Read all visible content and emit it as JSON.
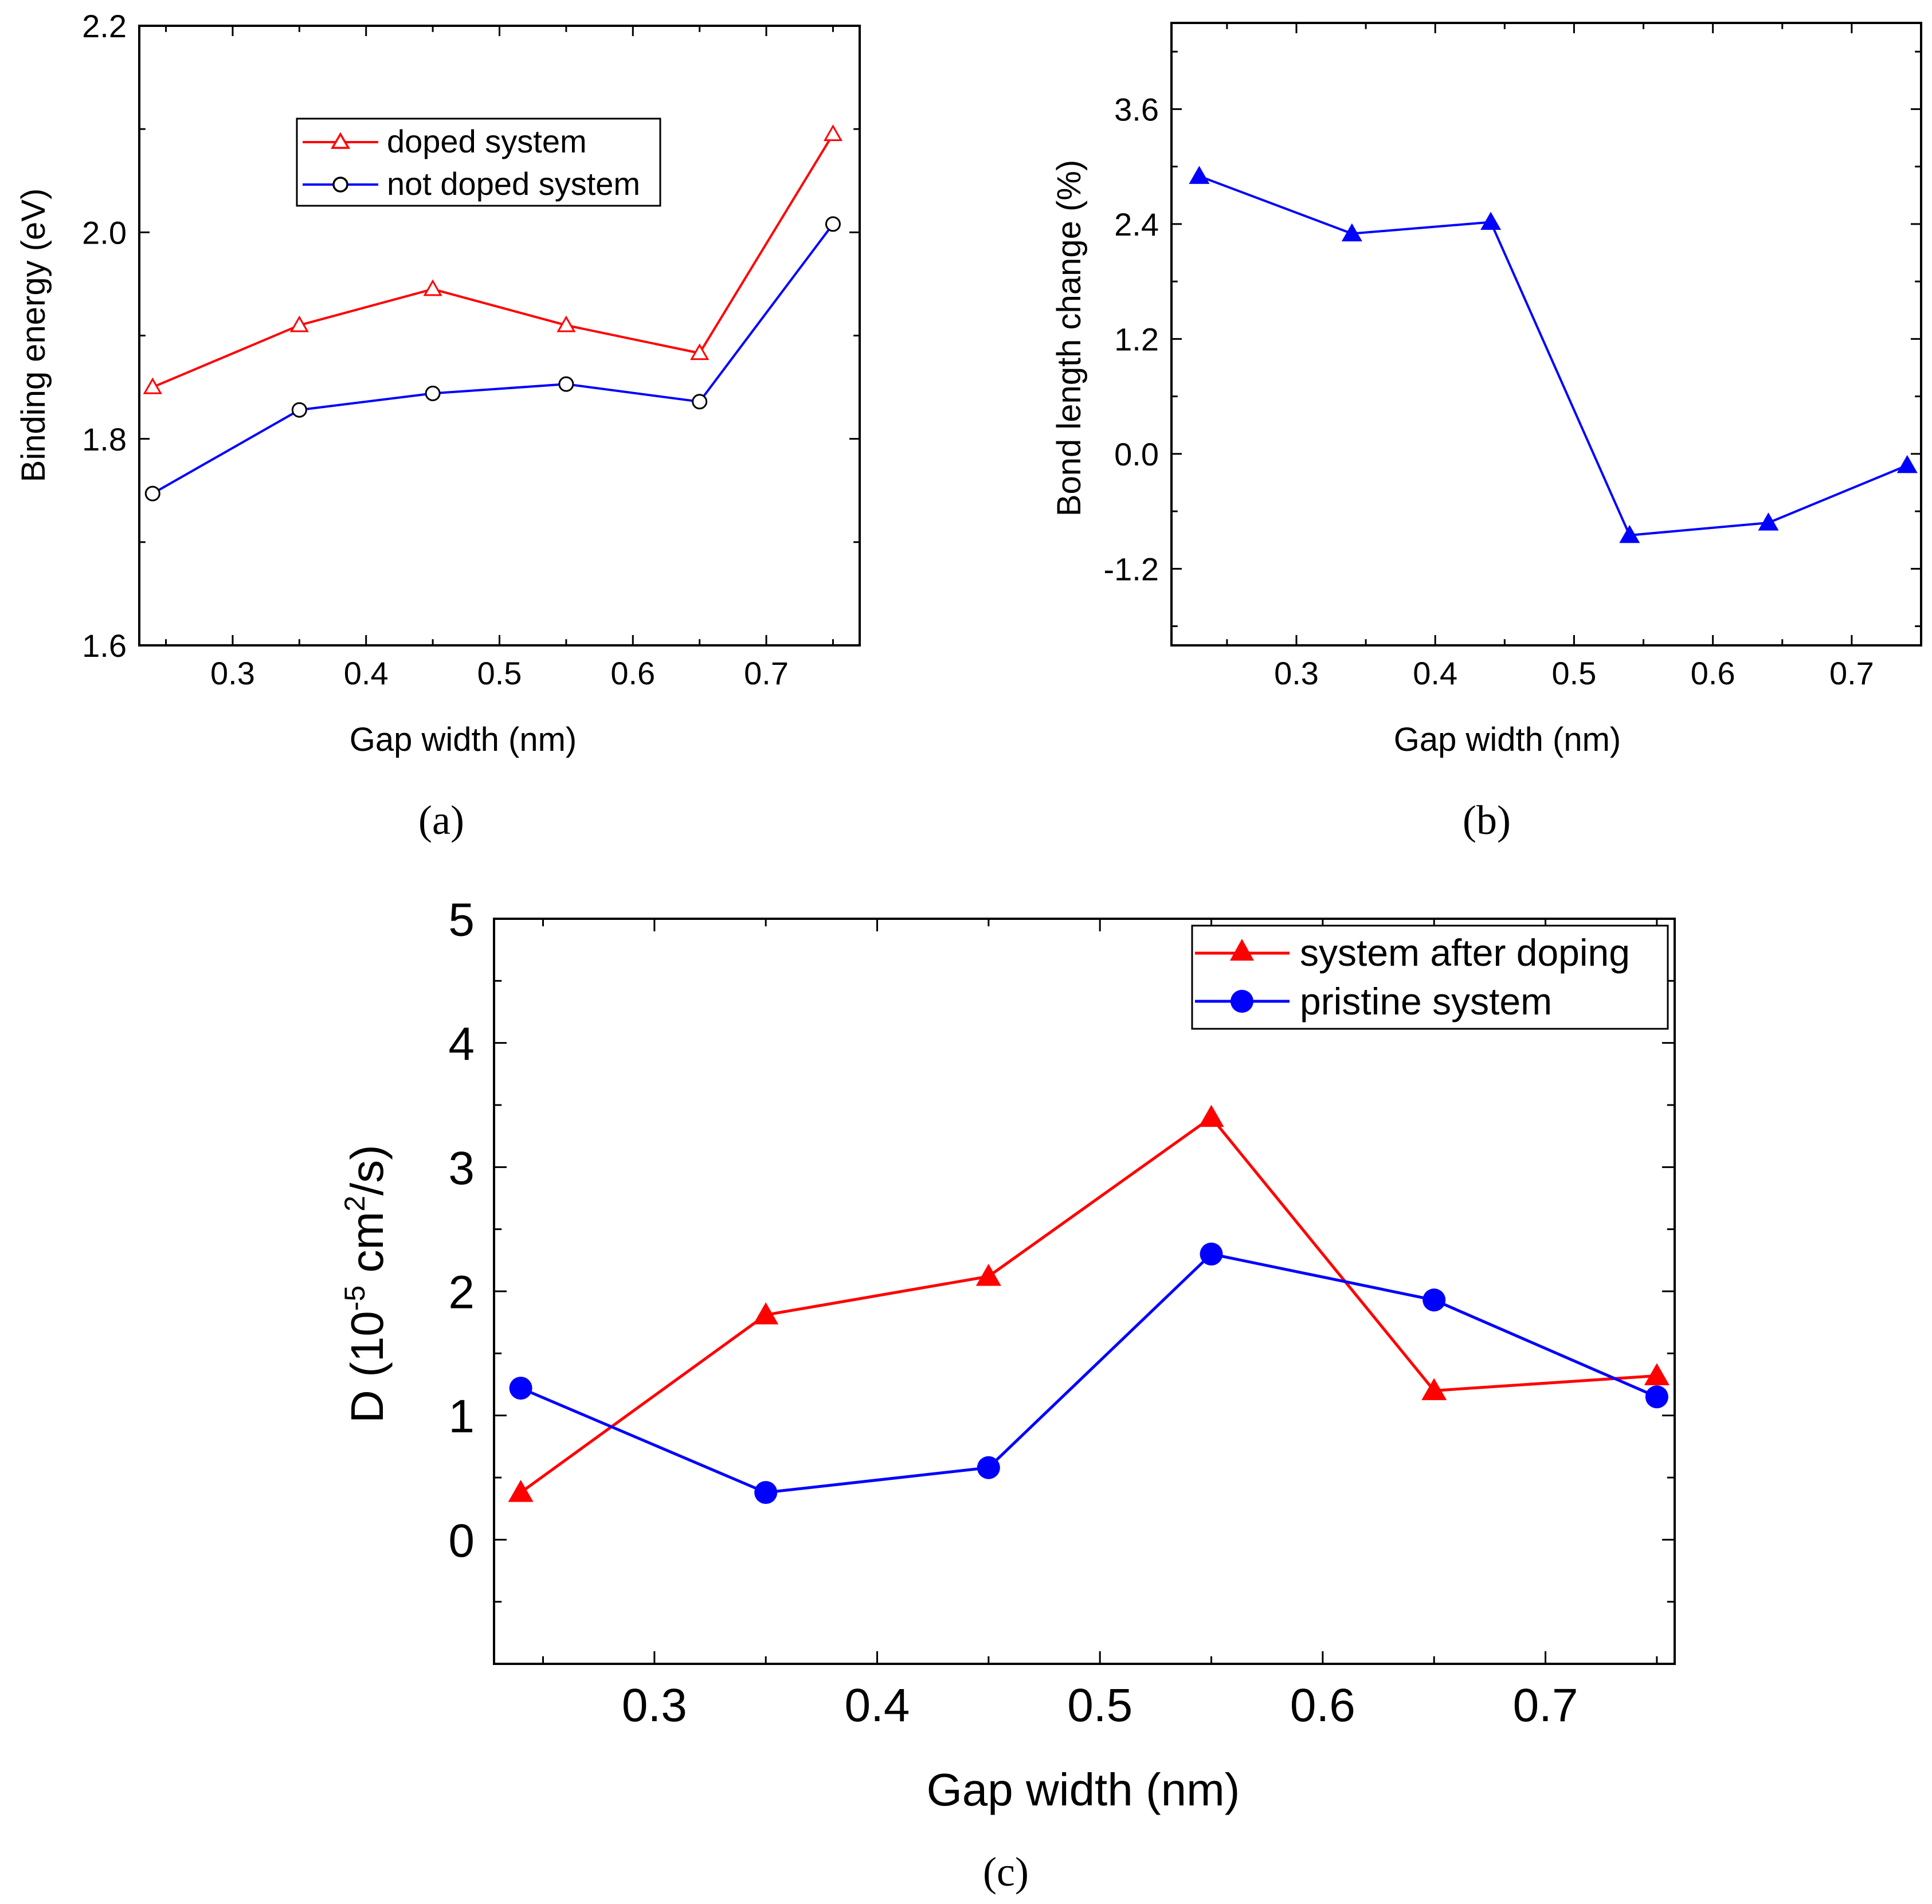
{
  "chart_data": [
    {
      "id": "a",
      "type": "line",
      "panel_label": "(a)",
      "title": "",
      "xlabel": "Gap width (nm)",
      "ylabel": "Binding energy (eV)",
      "xlim": [
        0.23,
        0.77
      ],
      "ylim": [
        1.6,
        2.2
      ],
      "xticks": [
        0.3,
        0.4,
        0.5,
        0.6,
        0.7
      ],
      "xtick_labels": [
        "0.3",
        "0.4",
        "0.5",
        "0.6",
        "0.7"
      ],
      "yticks": [
        1.6,
        1.8,
        2.0,
        2.2
      ],
      "ytick_labels": [
        "1.6",
        "1.8",
        "2.0",
        "2.2"
      ],
      "legend_position": "top-center",
      "x": [
        0.24,
        0.35,
        0.45,
        0.55,
        0.65,
        0.75
      ],
      "series": [
        {
          "name": "doped system",
          "color": "#ff0000",
          "marker": "triangle-open",
          "values": [
            1.85,
            1.91,
            1.945,
            1.91,
            1.883,
            2.095
          ]
        },
        {
          "name": "not doped system",
          "color": "#0000ff",
          "marker": "circle-open",
          "values": [
            1.747,
            1.828,
            1.844,
            1.853,
            1.836,
            2.008
          ]
        }
      ]
    },
    {
      "id": "b",
      "type": "line",
      "panel_label": "(b)",
      "title": "",
      "xlabel": "Gap width (nm)",
      "ylabel": "Bond length change (%)",
      "xlim": [
        0.21,
        0.75
      ],
      "ylim": [
        -2.0,
        4.5
      ],
      "xticks": [
        0.3,
        0.4,
        0.5,
        0.6,
        0.7
      ],
      "xtick_labels": [
        "0.3",
        "0.4",
        "0.5",
        "0.6",
        "0.7"
      ],
      "yticks": [
        -1.2,
        0.0,
        1.2,
        2.4,
        3.6
      ],
      "ytick_labels": [
        "-1.2",
        "0.0",
        "1.2",
        "2.4",
        "3.6"
      ],
      "legend_position": "none",
      "x": [
        0.23,
        0.34,
        0.44,
        0.54,
        0.64,
        0.74
      ],
      "series": [
        {
          "name": "bond length change",
          "color": "#0000ff",
          "marker": "triangle-filled",
          "values": [
            2.9,
            2.3,
            2.42,
            -0.85,
            -0.72,
            -0.12
          ]
        }
      ]
    },
    {
      "id": "c",
      "type": "line",
      "panel_label": "(c)",
      "title": "",
      "xlabel": "Gap width (nm)",
      "ylabel": {
        "prefix": "D (10",
        "sup1": "-5",
        "mid": " cm",
        "sup2": "2",
        "suffix": "/s)"
      },
      "xlim": [
        0.228,
        0.758
      ],
      "ylim": [
        -1.0,
        5.0
      ],
      "xticks": [
        0.3,
        0.4,
        0.5,
        0.6,
        0.7
      ],
      "xtick_labels": [
        "0.3",
        "0.4",
        "0.5",
        "0.6",
        "0.7"
      ],
      "yticks": [
        0,
        1,
        2,
        3,
        4,
        5
      ],
      "ytick_labels": [
        "0",
        "1",
        "2",
        "3",
        "4",
        "5"
      ],
      "legend_position": "top-right",
      "x": [
        0.24,
        0.35,
        0.45,
        0.55,
        0.65,
        0.75
      ],
      "series": [
        {
          "name": "system after doping",
          "color": "#ff0000",
          "marker": "triangle-filled",
          "values": [
            0.38,
            1.81,
            2.12,
            3.4,
            1.2,
            1.32
          ]
        },
        {
          "name": "pristine system",
          "color": "#0000ff",
          "marker": "circle-filled",
          "values": [
            1.22,
            0.38,
            0.58,
            2.3,
            1.93,
            1.15
          ]
        }
      ]
    }
  ]
}
